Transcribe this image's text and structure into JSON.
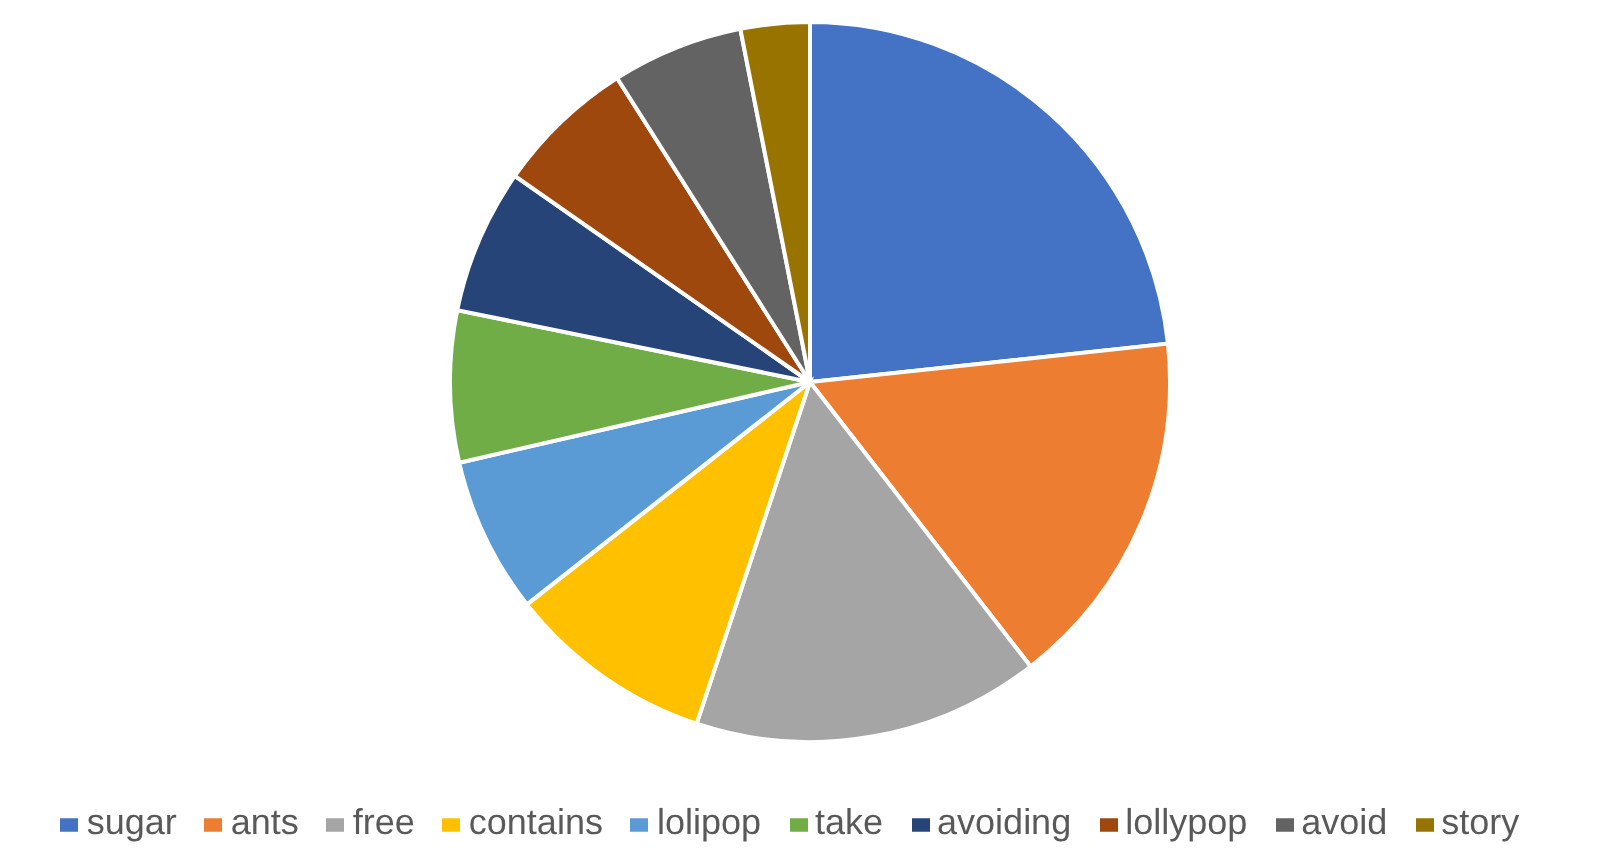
{
  "chart_data": {
    "type": "pie",
    "categories": [
      "sugar",
      "ants",
      "free",
      "contains",
      "lolipop",
      "take",
      "avoiding",
      "lollypop",
      "avoid",
      "story"
    ],
    "values": [
      23.3,
      16.2,
      15.6,
      9.3,
      7.0,
      6.8,
      6.5,
      6.3,
      5.9,
      3.1
    ],
    "colors": [
      "#4472c4",
      "#ed7d31",
      "#a5a5a5",
      "#ffc000",
      "#5b9bd5",
      "#70ad47",
      "#264478",
      "#9e480e",
      "#636363",
      "#997300"
    ],
    "legend": "bottom"
  }
}
